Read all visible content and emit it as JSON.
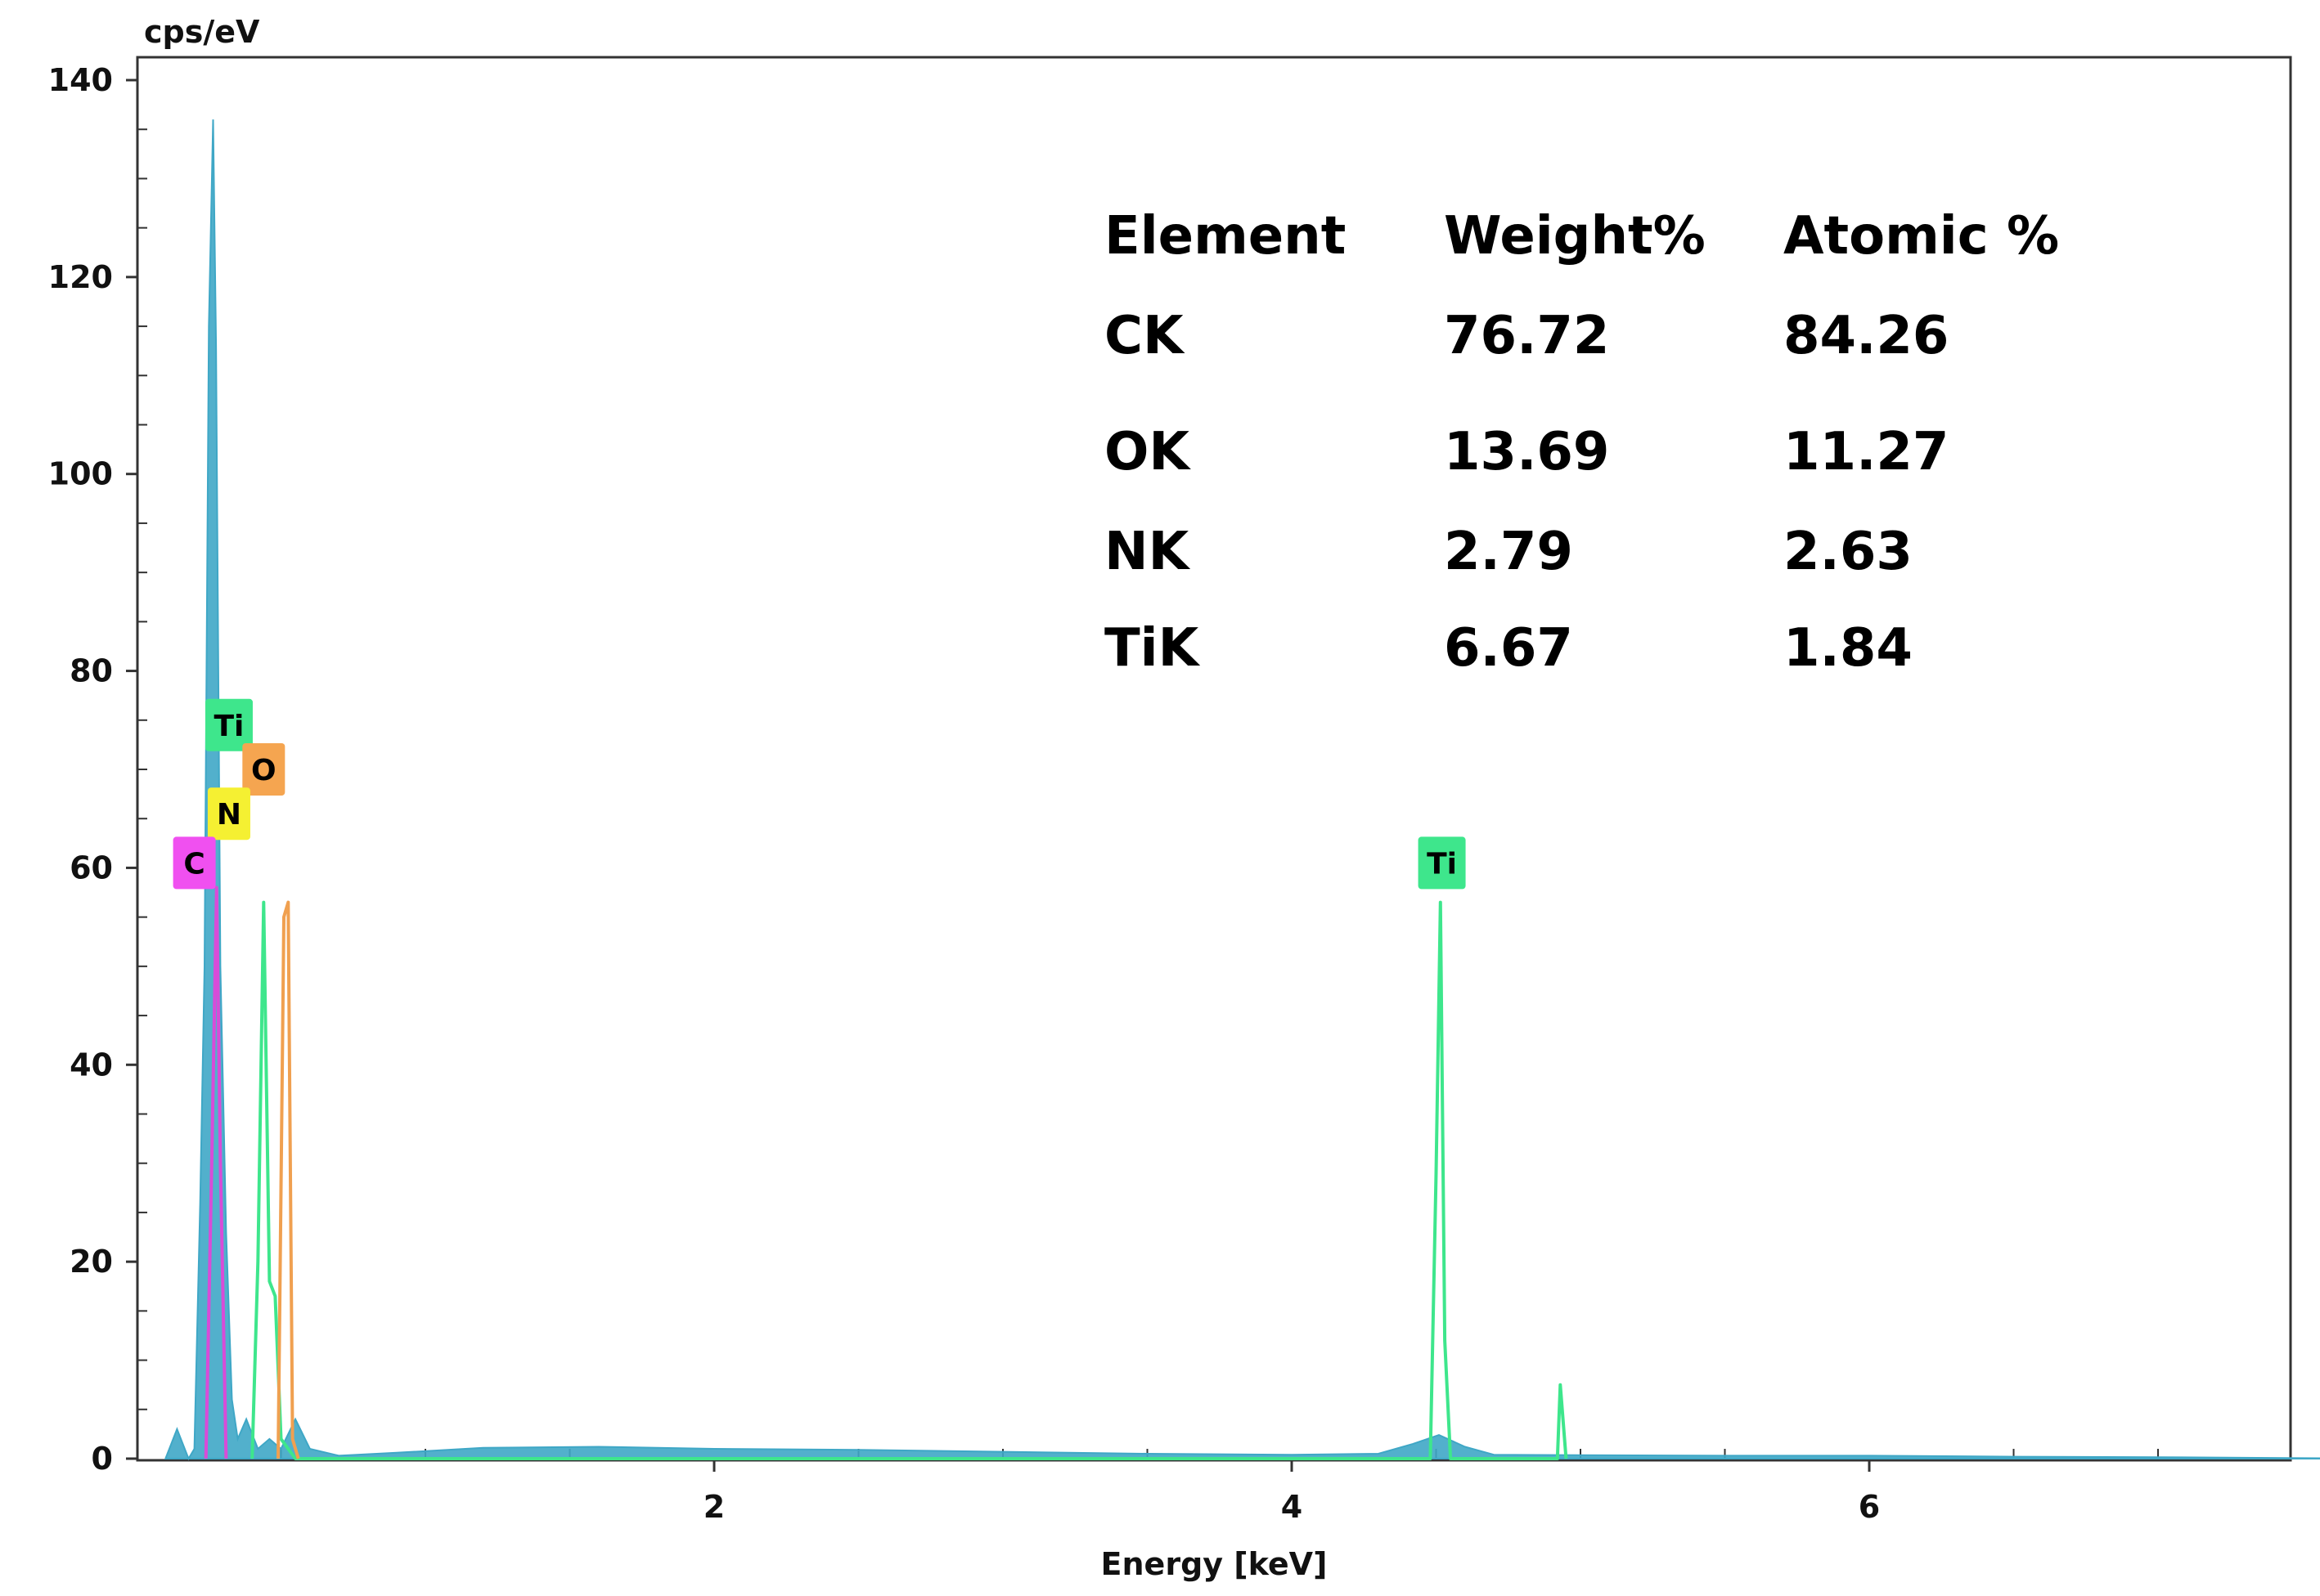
{
  "chart_data": {
    "type": "line",
    "title": "",
    "xlabel": "Energy [keV]",
    "ylabel": "cps/eV",
    "xlim": [
      0,
      15
    ],
    "ylim": [
      0,
      140
    ],
    "x_ticks": [
      2,
      4,
      6,
      8,
      10,
      12,
      14
    ],
    "y_ticks": [
      0,
      20,
      40,
      60,
      80,
      100,
      120,
      140
    ],
    "grid": false,
    "series": [
      {
        "color": "#3fa7c6",
        "points": [
          [
            0.1,
            0
          ],
          [
            0.14,
            3
          ],
          [
            0.18,
            0
          ],
          [
            0.2,
            1
          ],
          [
            0.22,
            26
          ],
          [
            0.235,
            50
          ],
          [
            0.25,
            115
          ],
          [
            0.265,
            136
          ],
          [
            0.275,
            113
          ],
          [
            0.29,
            50
          ],
          [
            0.31,
            23
          ],
          [
            0.33,
            6
          ],
          [
            0.35,
            2
          ],
          [
            0.38,
            4
          ],
          [
            0.42,
            1
          ],
          [
            0.46,
            2
          ],
          [
            0.5,
            1
          ],
          [
            0.55,
            4
          ],
          [
            0.6,
            1
          ],
          [
            0.7,
            0.3
          ],
          [
            0.9,
            0.6
          ],
          [
            1.2,
            1.1
          ],
          [
            1.6,
            1.2
          ],
          [
            2.0,
            1.0
          ],
          [
            2.5,
            0.9
          ],
          [
            3.0,
            0.7
          ],
          [
            3.5,
            0.5
          ],
          [
            4.0,
            0.4
          ],
          [
            4.3,
            0.5
          ],
          [
            4.42,
            1.5
          ],
          [
            4.51,
            2.4
          ],
          [
            4.6,
            1.2
          ],
          [
            4.7,
            0.4
          ],
          [
            5.0,
            0.35
          ],
          [
            5.5,
            0.3
          ],
          [
            6.0,
            0.3
          ],
          [
            6.5,
            0.2
          ],
          [
            7.0,
            0.15
          ],
          [
            7.5,
            0.05
          ],
          [
            8.0,
            0
          ],
          [
            15,
            0
          ]
        ]
      },
      {
        "color": "#3ee68c",
        "points": [
          [
            0.4,
            0
          ],
          [
            0.42,
            20
          ],
          [
            0.44,
            56.5
          ],
          [
            0.46,
            18
          ],
          [
            0.48,
            16.5
          ],
          [
            0.5,
            2
          ],
          [
            0.55,
            0
          ],
          [
            4.48,
            0
          ],
          [
            4.5,
            29
          ],
          [
            4.515,
            56.5
          ],
          [
            4.53,
            12
          ],
          [
            4.55,
            0
          ],
          [
            4.92,
            0
          ],
          [
            4.93,
            7.5
          ],
          [
            4.95,
            0
          ]
        ]
      },
      {
        "color": "#f0a050",
        "points": [
          [
            0.49,
            0
          ],
          [
            0.51,
            55
          ],
          [
            0.525,
            56.5
          ],
          [
            0.54,
            2
          ],
          [
            0.56,
            0
          ]
        ]
      },
      {
        "color": "#d84cd8",
        "points": [
          [
            0.24,
            0
          ],
          [
            0.26,
            30
          ],
          [
            0.277,
            58
          ],
          [
            0.29,
            30
          ],
          [
            0.31,
            0
          ]
        ]
      }
    ],
    "element_markers": [
      {
        "label": "Ti",
        "x": 0.32,
        "y": 74.5,
        "color": "#3ee68c"
      },
      {
        "label": "O",
        "x": 0.44,
        "y": 70,
        "color": "#f5a550"
      },
      {
        "label": "N",
        "x": 0.32,
        "y": 65.5,
        "color": "#f5f032"
      },
      {
        "label": "C",
        "x": 0.2,
        "y": 60.5,
        "color": "#f050f0"
      },
      {
        "label": "Ti",
        "x": 4.52,
        "y": 60.5,
        "color": "#3ee68c"
      }
    ],
    "table": {
      "headers": [
        "Element",
        "Weight%",
        "Atomic %"
      ],
      "rows": [
        [
          "CK",
          "76.72",
          "84.26"
        ],
        [
          "OK",
          "13.69",
          "11.27"
        ],
        [
          "NK",
          "2.79",
          "2.63"
        ],
        [
          "TiK",
          "6.67",
          "1.84"
        ]
      ]
    }
  }
}
